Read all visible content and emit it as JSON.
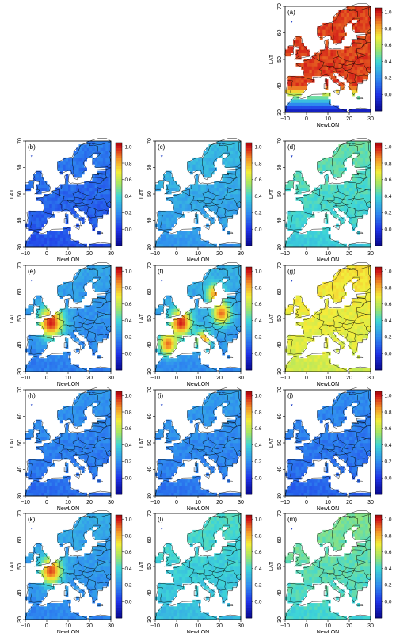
{
  "figure": {
    "colorbar": {
      "tick_labels": [
        "1.0",
        "0.8",
        "0.6",
        "0.4",
        "0.2",
        "0.0"
      ],
      "tick_values": [
        1.0,
        0.8,
        0.6,
        0.4,
        0.2,
        0.0
      ],
      "range": [
        -0.2,
        1.05
      ],
      "stops": [
        {
          "v": -0.2,
          "color": "#08088c"
        },
        {
          "v": 0.0,
          "color": "#1e32e6"
        },
        {
          "v": 0.2,
          "color": "#2f8cf0"
        },
        {
          "v": 0.4,
          "color": "#3ed6d6"
        },
        {
          "v": 0.55,
          "color": "#a4e666"
        },
        {
          "v": 0.7,
          "color": "#f4ee3a"
        },
        {
          "v": 0.85,
          "color": "#f49628"
        },
        {
          "v": 1.0,
          "color": "#d21818"
        },
        {
          "v": 1.05,
          "color": "#a00808"
        }
      ]
    },
    "colors": {
      "sea": "#ffffff",
      "border": "#000000",
      "frame": "#000000"
    }
  },
  "chart_data": [
    {
      "type": "heatmap",
      "panel_label": "(a)",
      "xlabel": "NewLON",
      "ylabel": "LAT",
      "x_ticks": [
        "−10",
        "0",
        "10",
        "20",
        "30"
      ],
      "y_ticks": [
        "30",
        "40",
        "50",
        "60",
        "70"
      ],
      "x_range": [
        -10,
        30
      ],
      "y_range": [
        30,
        70
      ],
      "base_value": 0.95,
      "hotspots": [],
      "south_gradient": true
    },
    {
      "type": "heatmap",
      "panel_label": "(b)",
      "xlabel": "NewLON",
      "ylabel": "LAT",
      "x_ticks": [
        "−10",
        "0",
        "10",
        "20",
        "30"
      ],
      "y_ticks": [
        "30",
        "40",
        "50",
        "60",
        "70"
      ],
      "x_range": [
        -10,
        30
      ],
      "y_range": [
        30,
        70
      ],
      "base_value": 0.12,
      "hotspots": []
    },
    {
      "type": "heatmap",
      "panel_label": "(c)",
      "xlabel": "NewLON",
      "ylabel": "LAT",
      "x_ticks": [
        "−10",
        "0",
        "10",
        "20",
        "30"
      ],
      "y_ticks": [
        "30",
        "40",
        "50",
        "60",
        "70"
      ],
      "x_range": [
        -10,
        30
      ],
      "y_range": [
        30,
        70
      ],
      "base_value": 0.28,
      "hotspots": []
    },
    {
      "type": "heatmap",
      "panel_label": "(d)",
      "xlabel": "NewLON",
      "ylabel": "LAT",
      "x_ticks": [
        "−10",
        "0",
        "10",
        "20",
        "30"
      ],
      "y_ticks": [
        "30",
        "40",
        "50",
        "60",
        "70"
      ],
      "x_range": [
        -10,
        30
      ],
      "y_range": [
        30,
        70
      ],
      "base_value": 0.42,
      "hotspots": []
    },
    {
      "type": "heatmap",
      "panel_label": "(e)",
      "xlabel": "NewLON",
      "ylabel": "LAT",
      "x_ticks": [
        "−10",
        "0",
        "10",
        "20",
        "30"
      ],
      "y_ticks": [
        "30",
        "40",
        "50",
        "60",
        "70"
      ],
      "x_range": [
        -10,
        30
      ],
      "y_range": [
        30,
        70
      ],
      "base_value": 0.22,
      "hotspots": [
        {
          "lon": 2,
          "lat": 48.5,
          "value": 1.0,
          "radius": 4
        }
      ]
    },
    {
      "type": "heatmap",
      "panel_label": "(f)",
      "xlabel": "NewLON",
      "ylabel": "LAT",
      "x_ticks": [
        "−10",
        "0",
        "10",
        "20",
        "30"
      ],
      "y_ticks": [
        "30",
        "40",
        "50",
        "60",
        "70"
      ],
      "x_range": [
        -10,
        30
      ],
      "y_range": [
        30,
        70
      ],
      "base_value": 0.25,
      "hotspots": [
        {
          "lon": 2,
          "lat": 48.5,
          "value": 1.0,
          "radius": 3.5
        },
        {
          "lon": -4,
          "lat": 40.5,
          "value": 0.9,
          "radius": 3
        },
        {
          "lon": 12.5,
          "lat": 42,
          "value": 0.85,
          "radius": 2.5
        },
        {
          "lon": 21,
          "lat": 52,
          "value": 0.9,
          "radius": 3
        },
        {
          "lon": 18,
          "lat": 59.5,
          "value": 0.85,
          "radius": 2.5
        }
      ]
    },
    {
      "type": "heatmap",
      "panel_label": "(g)",
      "xlabel": "NewLON",
      "ylabel": "LAT",
      "x_ticks": [
        "−10",
        "0",
        "10",
        "20",
        "30"
      ],
      "y_ticks": [
        "30",
        "40",
        "50",
        "60",
        "70"
      ],
      "x_range": [
        -10,
        30
      ],
      "y_range": [
        30,
        70
      ],
      "base_value": 0.68,
      "hotspots": []
    },
    {
      "type": "heatmap",
      "panel_label": "(h)",
      "xlabel": "NewLON",
      "ylabel": "LAT",
      "x_ticks": [
        "−10",
        "0",
        "10",
        "20",
        "30"
      ],
      "y_ticks": [
        "30",
        "40",
        "50",
        "60",
        "70"
      ],
      "x_range": [
        -10,
        30
      ],
      "y_range": [
        30,
        70
      ],
      "base_value": 0.18,
      "hotspots": []
    },
    {
      "type": "heatmap",
      "panel_label": "(i)",
      "xlabel": "NewLON",
      "ylabel": "LAT",
      "x_ticks": [
        "−10",
        "0",
        "10",
        "20",
        "30"
      ],
      "y_ticks": [
        "30",
        "40",
        "50",
        "60",
        "70"
      ],
      "x_range": [
        -10,
        30
      ],
      "y_range": [
        30,
        70
      ],
      "base_value": 0.2,
      "hotspots": []
    },
    {
      "type": "heatmap",
      "panel_label": "(j)",
      "xlabel": "NewLON",
      "ylabel": "LAT",
      "x_ticks": [
        "−10",
        "0",
        "10",
        "20",
        "30"
      ],
      "y_ticks": [
        "30",
        "40",
        "50",
        "60",
        "70"
      ],
      "x_range": [
        -10,
        30
      ],
      "y_range": [
        30,
        70
      ],
      "base_value": 0.16,
      "hotspots": []
    },
    {
      "type": "heatmap",
      "panel_label": "(k)",
      "xlabel": "NewLON",
      "ylabel": "LAT",
      "x_ticks": [
        "−10",
        "0",
        "10",
        "20",
        "30"
      ],
      "y_ticks": [
        "30",
        "40",
        "50",
        "60",
        "70"
      ],
      "x_range": [
        -10,
        30
      ],
      "y_range": [
        30,
        70
      ],
      "base_value": 0.24,
      "hotspots": [
        {
          "lon": 2,
          "lat": 48.5,
          "value": 0.95,
          "radius": 3.5
        }
      ]
    },
    {
      "type": "heatmap",
      "panel_label": "(l)",
      "xlabel": "NewLON",
      "ylabel": "LAT",
      "x_ticks": [
        "−10",
        "0",
        "10",
        "20",
        "30"
      ],
      "y_ticks": [
        "30",
        "40",
        "50",
        "60",
        "70"
      ],
      "x_range": [
        -10,
        30
      ],
      "y_range": [
        30,
        70
      ],
      "base_value": 0.38,
      "hotspots": []
    },
    {
      "type": "heatmap",
      "panel_label": "(m)",
      "xlabel": "NewLON",
      "ylabel": "LAT",
      "x_ticks": [
        "−10",
        "0",
        "10",
        "20",
        "30"
      ],
      "y_ticks": [
        "30",
        "40",
        "50",
        "60",
        "70"
      ],
      "x_range": [
        -10,
        30
      ],
      "y_range": [
        30,
        70
      ],
      "base_value": 0.45,
      "hotspots": []
    }
  ]
}
